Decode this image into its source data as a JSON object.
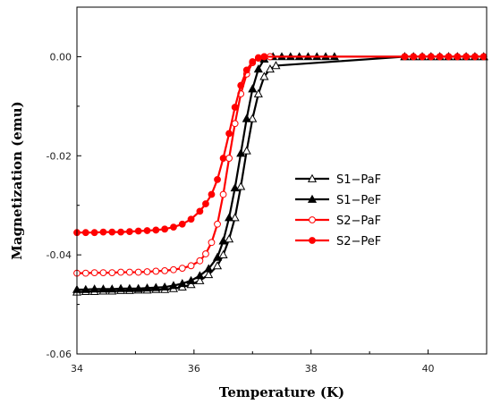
{
  "chart_data": {
    "type": "line",
    "title": "",
    "xlabel": "Temperature (K)",
    "ylabel": "Magnetization (emu)",
    "xlim": [
      34,
      41
    ],
    "ylim": [
      -0.06,
      0.01
    ],
    "xticks": [
      34,
      36,
      38,
      40
    ],
    "yticks": [
      0.0,
      -0.02,
      -0.04,
      -0.06
    ],
    "xtick_labels": [
      "34",
      "36",
      "38",
      "40"
    ],
    "ytick_labels": [
      "0.00",
      "-0.02",
      "-0.04",
      "-0.06"
    ],
    "grid": false,
    "legend_position": "right-center",
    "series": [
      {
        "name": "S1−PaF",
        "color": "#000000",
        "marker": "triangle-open",
        "x": [
          34.0,
          34.15,
          34.3,
          34.45,
          34.6,
          34.75,
          34.9,
          35.05,
          35.2,
          35.35,
          35.5,
          35.65,
          35.8,
          35.95,
          36.1,
          36.25,
          36.4,
          36.5,
          36.6,
          36.7,
          36.8,
          36.9,
          37.0,
          37.1,
          37.2,
          37.3,
          37.4,
          39.6,
          39.75,
          39.9,
          40.05,
          40.2,
          40.35,
          40.5,
          40.65,
          40.8,
          40.95
        ],
        "y": [
          -0.0475,
          -0.0474,
          -0.0474,
          -0.0473,
          -0.0473,
          -0.0472,
          -0.0472,
          -0.0471,
          -0.0471,
          -0.047,
          -0.047,
          -0.0468,
          -0.0465,
          -0.046,
          -0.0452,
          -0.044,
          -0.0422,
          -0.04,
          -0.0368,
          -0.0325,
          -0.0262,
          -0.019,
          -0.0125,
          -0.0075,
          -0.004,
          -0.0025,
          -0.0018,
          0.0,
          0.0,
          0.0,
          0.0,
          0.0,
          0.0,
          0.0,
          0.0,
          0.0,
          0.0
        ]
      },
      {
        "name": "S1−PeF",
        "color": "#000000",
        "marker": "triangle-filled",
        "x": [
          34.0,
          34.15,
          34.3,
          34.45,
          34.6,
          34.75,
          34.9,
          35.05,
          35.2,
          35.35,
          35.5,
          35.65,
          35.8,
          35.95,
          36.1,
          36.25,
          36.4,
          36.5,
          36.6,
          36.7,
          36.8,
          36.9,
          37.0,
          37.1,
          37.2,
          37.35,
          37.5,
          37.65,
          37.8,
          37.95,
          38.1,
          38.25,
          38.4,
          39.6,
          39.75,
          39.9,
          40.05,
          40.2,
          40.35,
          40.5,
          40.65,
          40.8,
          40.95
        ],
        "y": [
          -0.047,
          -0.047,
          -0.0469,
          -0.0469,
          -0.0469,
          -0.0468,
          -0.0468,
          -0.0468,
          -0.0467,
          -0.0466,
          -0.0465,
          -0.0462,
          -0.0458,
          -0.0452,
          -0.0442,
          -0.0428,
          -0.0405,
          -0.0372,
          -0.0325,
          -0.0265,
          -0.0195,
          -0.0125,
          -0.0065,
          -0.0025,
          -0.0005,
          0.0,
          0.0,
          0.0,
          0.0,
          0.0,
          0.0,
          0.0,
          0.0,
          0.0,
          0.0,
          0.0,
          0.0,
          0.0,
          0.0,
          0.0,
          0.0,
          0.0,
          0.0
        ]
      },
      {
        "name": "S2−PaF",
        "color": "#ff0000",
        "marker": "circle-open",
        "x": [
          34.0,
          34.15,
          34.3,
          34.45,
          34.6,
          34.75,
          34.9,
          35.05,
          35.2,
          35.35,
          35.5,
          35.65,
          35.8,
          35.95,
          36.1,
          36.2,
          36.3,
          36.4,
          36.5,
          36.6,
          36.7,
          36.8,
          36.9,
          37.0,
          37.1,
          37.2,
          37.3,
          39.6,
          39.75,
          39.9,
          40.05,
          40.2,
          40.35,
          40.5,
          40.65,
          40.8,
          40.95
        ],
        "y": [
          -0.0437,
          -0.0437,
          -0.0436,
          -0.0436,
          -0.0436,
          -0.0435,
          -0.0435,
          -0.0435,
          -0.0434,
          -0.0433,
          -0.0432,
          -0.043,
          -0.0427,
          -0.0422,
          -0.0412,
          -0.0398,
          -0.0375,
          -0.0338,
          -0.0278,
          -0.0205,
          -0.0135,
          -0.0075,
          -0.0035,
          -0.0012,
          -0.0002,
          0.0,
          0.0,
          0.0,
          0.0,
          0.0,
          0.0,
          0.0,
          0.0,
          0.0,
          0.0,
          0.0,
          0.0
        ]
      },
      {
        "name": "S2−PeF",
        "color": "#ff0000",
        "marker": "circle-filled",
        "x": [
          34.0,
          34.15,
          34.3,
          34.45,
          34.6,
          34.75,
          34.9,
          35.05,
          35.2,
          35.35,
          35.5,
          35.65,
          35.8,
          35.95,
          36.1,
          36.2,
          36.3,
          36.4,
          36.5,
          36.6,
          36.7,
          36.8,
          36.9,
          37.0,
          37.1,
          37.2,
          39.6,
          39.75,
          39.9,
          40.05,
          40.2,
          40.35,
          40.5,
          40.65,
          40.8,
          40.95
        ],
        "y": [
          -0.0355,
          -0.0355,
          -0.0355,
          -0.0354,
          -0.0354,
          -0.0354,
          -0.0353,
          -0.0352,
          -0.0351,
          -0.035,
          -0.0348,
          -0.0344,
          -0.0338,
          -0.0328,
          -0.0312,
          -0.0297,
          -0.0278,
          -0.0248,
          -0.0205,
          -0.0155,
          -0.0102,
          -0.0058,
          -0.0027,
          -0.001,
          -0.0003,
          0.0,
          0.0,
          0.0,
          0.0,
          0.0,
          0.0,
          0.0,
          0.0,
          0.0,
          0.0,
          0.0
        ]
      }
    ]
  }
}
